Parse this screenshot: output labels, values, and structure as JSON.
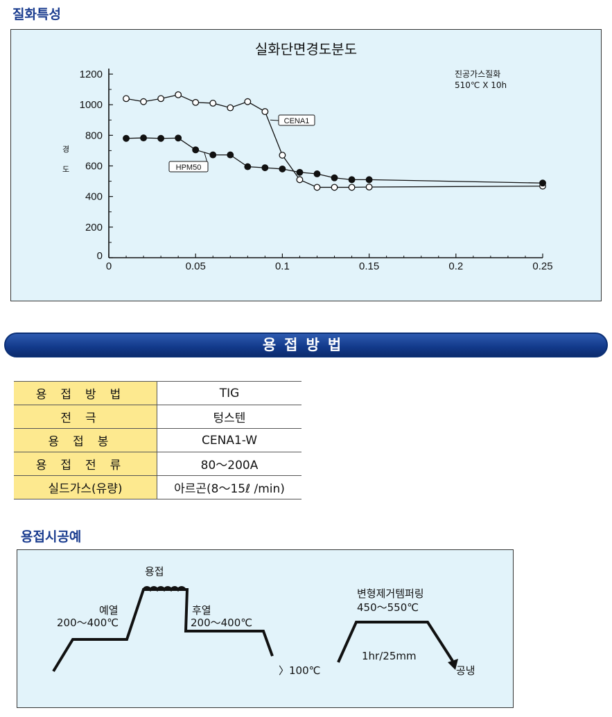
{
  "section1_title": "질화특성",
  "chart_data": {
    "type": "line",
    "title": "실화단면경도분도",
    "ylabel": "경도",
    "xlabel": "",
    "note": [
      "진공가스질화",
      "510℃ X 10h"
    ],
    "xlim": [
      0,
      0.25
    ],
    "ylim": [
      0,
      1200
    ],
    "xticks": [
      0,
      0.05,
      0.1,
      0.15,
      0.2,
      0.25
    ],
    "xtick_labels": [
      "0",
      "0.05",
      "0.1",
      "0.15",
      "0.2",
      "0.25"
    ],
    "yticks": [
      0,
      200,
      400,
      600,
      800,
      1000,
      1200
    ],
    "ytick_labels": [
      "0",
      "200",
      "400",
      "600",
      "800",
      "1000",
      "1200"
    ],
    "grid": false,
    "series": [
      {
        "name": "CENA1",
        "marker": "open",
        "x": [
          0.01,
          0.02,
          0.03,
          0.04,
          0.05,
          0.06,
          0.07,
          0.08,
          0.09,
          0.1,
          0.11,
          0.12,
          0.13,
          0.14,
          0.15,
          0.25
        ],
        "y": [
          1040,
          1020,
          1040,
          1065,
          1015,
          1010,
          980,
          1020,
          955,
          670,
          510,
          460,
          460,
          460,
          462,
          468
        ]
      },
      {
        "name": "HPM50",
        "marker": "filled",
        "x": [
          0.01,
          0.02,
          0.03,
          0.04,
          0.05,
          0.06,
          0.07,
          0.08,
          0.09,
          0.1,
          0.11,
          0.12,
          0.13,
          0.14,
          0.15,
          0.25
        ],
        "y": [
          780,
          783,
          780,
          782,
          705,
          672,
          672,
          595,
          588,
          580,
          558,
          548,
          522,
          510,
          510,
          488
        ]
      }
    ]
  },
  "banner_title": "용접방법",
  "weld_table": [
    {
      "key": "용접방법",
      "value": "TIG"
    },
    {
      "key": "전극",
      "value": "텅스텐"
    },
    {
      "key": "용접봉",
      "value": "CENA1-W"
    },
    {
      "key": "용접전류",
      "value": "80～200A"
    },
    {
      "key": "실드가스(유량)",
      "value": "아르곤(8～15ℓ /min)"
    }
  ],
  "section2_title": "용접시공예",
  "process": {
    "preheat_label": "예열",
    "preheat_temp": "200～400℃",
    "weld_label": "용접",
    "postheat_label": "후열",
    "postheat_temp": "200～400℃",
    "cool_note": "〉100℃",
    "temper_label": "변형제거템퍼링",
    "temper_temp": "450～550℃",
    "temper_time": "1hr/25mm",
    "cool_label": "공냉"
  },
  "colors": {
    "panel_bg": "#e2f3fa",
    "title_blue": "#1a3c8f",
    "banner": "#1a4594",
    "table_key_bg": "#fde98f"
  }
}
